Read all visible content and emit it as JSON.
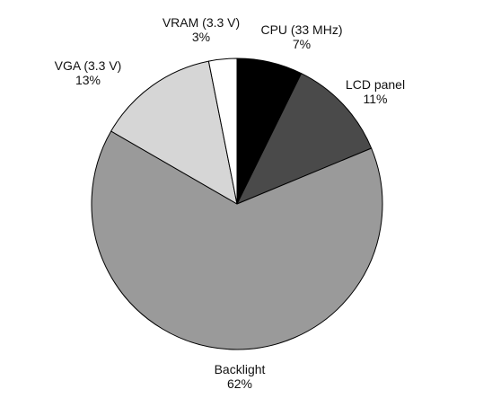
{
  "chart_data": {
    "type": "pie",
    "start": "12 o'clock",
    "direction": "clockwise",
    "slices": [
      {
        "label": "CPU (33 MHz)",
        "value": 7,
        "value_label": "7%",
        "color": "#000000"
      },
      {
        "label": "LCD panel",
        "value": 11,
        "value_label": "11%",
        "color": "#4a4a4a"
      },
      {
        "label": "Backlight",
        "value": 62,
        "value_label": "62%",
        "color": "#9a9a9a"
      },
      {
        "label": "VGA (3.3 V)",
        "value": 13,
        "value_label": "13%",
        "color": "#d6d6d6"
      },
      {
        "label": "VRAM (3.3 V)",
        "value": 3,
        "value_label": "3%",
        "color": "#ffffff"
      }
    ],
    "slice_outline_color": "#000000",
    "legend": "none"
  }
}
